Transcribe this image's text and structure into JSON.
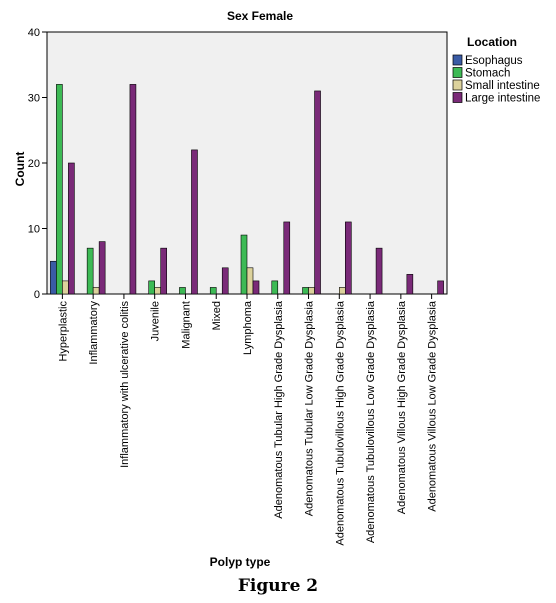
{
  "figure_caption": "Figure 2",
  "chart_data": {
    "type": "bar",
    "title": "Sex Female",
    "xlabel": "Polyp type",
    "ylabel": "Count",
    "ylim": [
      0,
      40
    ],
    "yticks": [
      0,
      10,
      20,
      30,
      40
    ],
    "grid": false,
    "legend_title": "Location",
    "legend_position": "top-right",
    "categories": [
      "Hyperplastic",
      "Inflammatory",
      "Inflammatory with ulcerative colitis",
      "Juvenile",
      "Malignant",
      "Mixed",
      "Lymphoma",
      "Adenomatous Tubular High Grade Dysplasia",
      "Adenomatous Tubular Low Grade Dysplasia",
      "Adenomatous Tubulovillous High Grade Dysplasia",
      "Adenomatous Tubulovillous Low Grade Dysplasia",
      "Adenomatous Villous High Grade Dysplasia",
      "Adenomatous Villous Low Grade Dysplasia"
    ],
    "series": [
      {
        "name": "Esophagus",
        "color": "#3a5ba5",
        "values": [
          5,
          0,
          0,
          0,
          0,
          0,
          0,
          0,
          0,
          0,
          0,
          0,
          0
        ]
      },
      {
        "name": "Stomach",
        "color": "#3dba55",
        "values": [
          32,
          7,
          0,
          2,
          1,
          1,
          9,
          2,
          1,
          0,
          0,
          0,
          0
        ]
      },
      {
        "name": "Small intestine",
        "color": "#dcd29c",
        "values": [
          2,
          1,
          0,
          1,
          0,
          0,
          4,
          0,
          1,
          1,
          0,
          0,
          0
        ]
      },
      {
        "name": "Large intestine",
        "color": "#7a2a78",
        "values": [
          20,
          8,
          32,
          7,
          22,
          4,
          2,
          11,
          31,
          11,
          7,
          3,
          2
        ]
      }
    ]
  }
}
